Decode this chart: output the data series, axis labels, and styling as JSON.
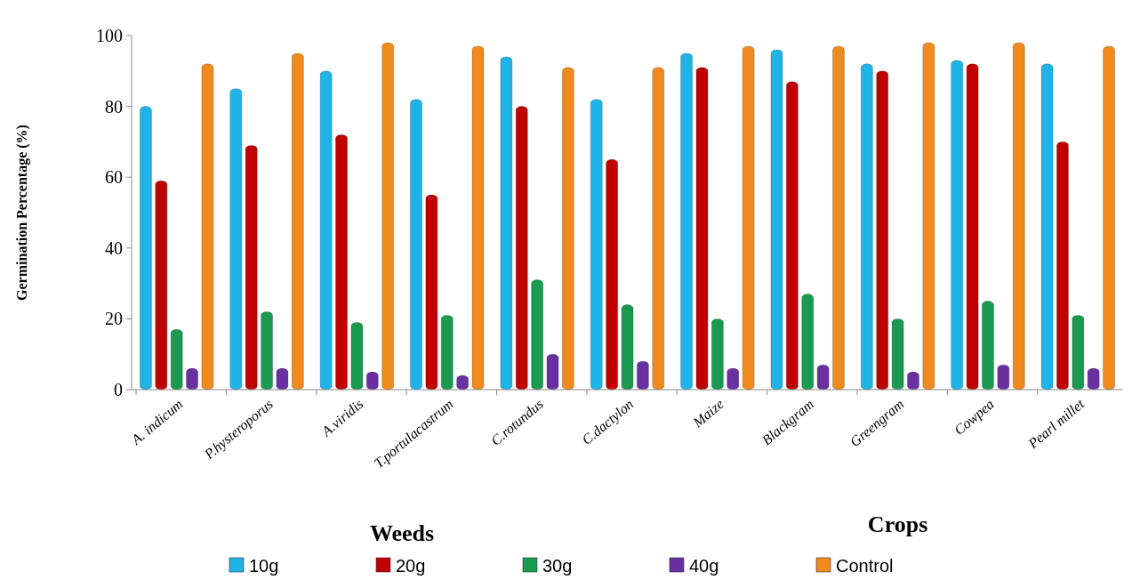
{
  "chart_data": {
    "type": "bar",
    "ylabel": "Germination Percentage  (%)",
    "categories": [
      "A. indicum",
      "P.hysteroporus",
      "A.viridis",
      "T.portulacastrum",
      "C.rotundus",
      "C.dactylon",
      "Maize",
      "Blackgram",
      "Greengram",
      "Cowpea",
      "Pearl millet"
    ],
    "series": [
      {
        "name": "10g",
        "color": "#1fb4e8",
        "values": [
          80,
          85,
          90,
          82,
          94,
          82,
          95,
          96,
          92,
          93,
          92
        ]
      },
      {
        "name": "20g",
        "color": "#c00000",
        "values": [
          59,
          69,
          72,
          55,
          80,
          65,
          91,
          87,
          90,
          92,
          70
        ]
      },
      {
        "name": "30g",
        "color": "#1a9a50",
        "values": [
          17,
          22,
          19,
          21,
          31,
          24,
          20,
          27,
          20,
          25,
          21
        ]
      },
      {
        "name": "40g",
        "color": "#6a2fa0",
        "values": [
          6,
          6,
          5,
          4,
          10,
          8,
          6,
          7,
          5,
          7,
          6
        ]
      },
      {
        "name": "Control",
        "color": "#f08a1c",
        "values": [
          92,
          95,
          98,
          97,
          91,
          91,
          97,
          97,
          98,
          98,
          97
        ]
      }
    ],
    "ylim": [
      0,
      100
    ],
    "yticks": [
      0,
      20,
      40,
      60,
      80,
      100
    ],
    "grid": false,
    "legend": "bottom",
    "annotations": [
      "Weeds",
      "Crops"
    ]
  }
}
